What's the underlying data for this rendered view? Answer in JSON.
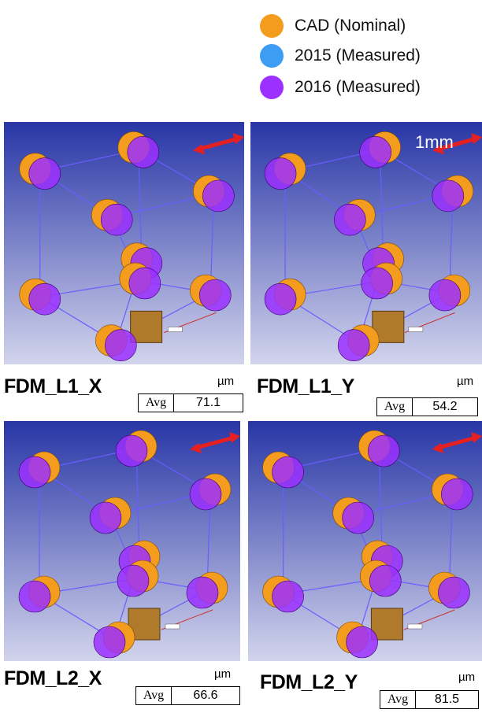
{
  "legend": [
    {
      "label": "CAD (Nominal)",
      "color": "#f39c1e"
    },
    {
      "label": "2015 (Measured)",
      "color": "#3d9df2"
    },
    {
      "label": "2016 (Measured)",
      "color": "#9b30ff"
    }
  ],
  "scale_label": "1mm",
  "panels": [
    {
      "title": "FDM_L1_X",
      "unit": "µm",
      "avg_label": "Avg",
      "avg": 71.1
    },
    {
      "title": "FDM_L1_Y",
      "unit": "µm",
      "avg_label": "Avg",
      "avg": 54.2
    },
    {
      "title": "FDM_L2_X",
      "unit": "µm",
      "avg_label": "Avg",
      "avg": 66.6
    },
    {
      "title": "FDM_L2_Y",
      "unit": "µm",
      "avg_label": "Avg",
      "avg": 81.5
    }
  ]
}
